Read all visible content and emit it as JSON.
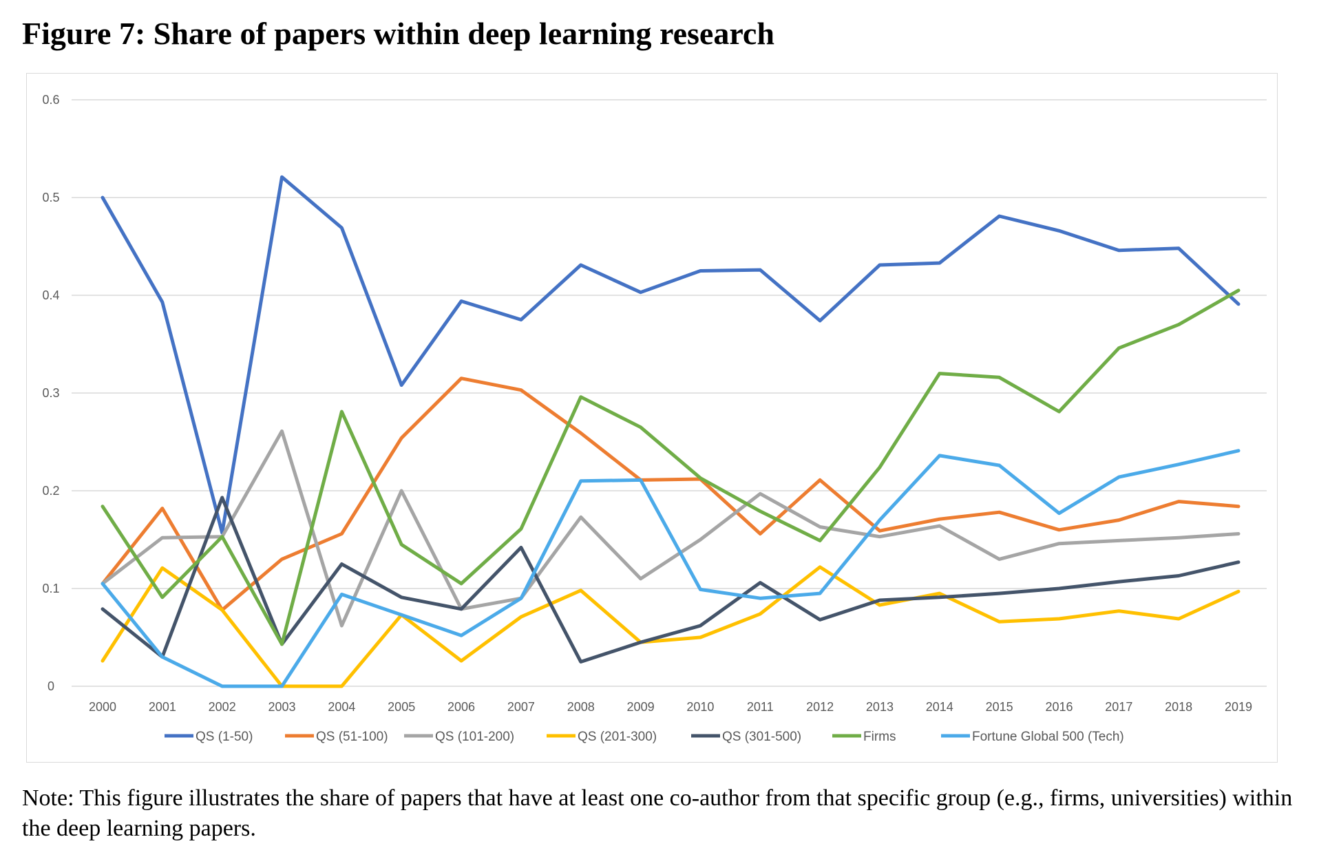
{
  "figure": {
    "title": "Figure 7: Share of papers within deep learning research",
    "note": "Note: This figure illustrates the share of papers that have at least one co-author from that specific group (e.g., firms, universities) within the deep learning papers."
  },
  "chart_data": {
    "type": "line",
    "title": "",
    "xlabel": "",
    "ylabel": "",
    "ylim": [
      0,
      0.6
    ],
    "y_ticks": [
      0,
      0.1,
      0.2,
      0.3,
      0.4,
      0.5,
      0.6
    ],
    "y_tick_labels": [
      "0",
      "0.1",
      "0.2",
      "0.3",
      "0.4",
      "0.5",
      "0.6"
    ],
    "grid": true,
    "legend_position": "bottom",
    "x": [
      "2000",
      "2001",
      "2002",
      "2003",
      "2004",
      "2005",
      "2006",
      "2007",
      "2008",
      "2009",
      "2010",
      "2011",
      "2012",
      "2013",
      "2014",
      "2015",
      "2016",
      "2017",
      "2018",
      "2019"
    ],
    "series": [
      {
        "name": "QS (1-50)",
        "color": "#4472C4",
        "values": [
          0.5,
          0.393,
          0.157,
          0.521,
          0.469,
          0.308,
          0.394,
          0.375,
          0.431,
          0.403,
          0.425,
          0.426,
          0.374,
          0.431,
          0.433,
          0.481,
          0.466,
          0.446,
          0.448,
          0.391
        ]
      },
      {
        "name": "QS (51-100)",
        "color": "#ED7D31",
        "values": [
          0.105,
          0.182,
          0.078,
          0.13,
          0.156,
          0.254,
          0.315,
          0.303,
          0.259,
          0.211,
          0.212,
          0.156,
          0.211,
          0.159,
          0.171,
          0.178,
          0.16,
          0.17,
          0.189,
          0.184
        ]
      },
      {
        "name": "QS (101-200)",
        "color": "#A5A5A5",
        "values": [
          0.105,
          0.152,
          0.153,
          0.261,
          0.062,
          0.2,
          0.079,
          0.09,
          0.173,
          0.11,
          0.15,
          0.197,
          0.163,
          0.153,
          0.164,
          0.13,
          0.146,
          0.149,
          0.152,
          0.156
        ]
      },
      {
        "name": "QS (201-300)",
        "color": "#FFC000",
        "values": [
          0.026,
          0.121,
          0.078,
          0.0,
          0.0,
          0.073,
          0.026,
          0.071,
          0.098,
          0.045,
          0.05,
          0.074,
          0.122,
          0.083,
          0.095,
          0.066,
          0.069,
          0.077,
          0.069,
          0.097
        ]
      },
      {
        "name": "QS (301-500)",
        "color": "#44546A",
        "values": [
          0.079,
          0.03,
          0.193,
          0.043,
          0.125,
          0.091,
          0.079,
          0.142,
          0.025,
          0.045,
          0.062,
          0.106,
          0.068,
          0.088,
          0.091,
          0.095,
          0.1,
          0.107,
          0.113,
          0.127
        ]
      },
      {
        "name": "Firms",
        "color": "#70AD47",
        "values": [
          0.184,
          0.091,
          0.153,
          0.043,
          0.281,
          0.145,
          0.105,
          0.161,
          0.296,
          0.265,
          0.213,
          0.179,
          0.149,
          0.224,
          0.32,
          0.316,
          0.281,
          0.346,
          0.37,
          0.405
        ]
      },
      {
        "name": "Fortune Global 500 (Tech)",
        "color": "#4BAAE9",
        "values": [
          0.105,
          0.03,
          0.0,
          0.0,
          0.094,
          0.073,
          0.052,
          0.09,
          0.21,
          0.211,
          0.099,
          0.09,
          0.095,
          0.17,
          0.236,
          0.226,
          0.177,
          0.214,
          0.227,
          0.241
        ]
      }
    ]
  }
}
